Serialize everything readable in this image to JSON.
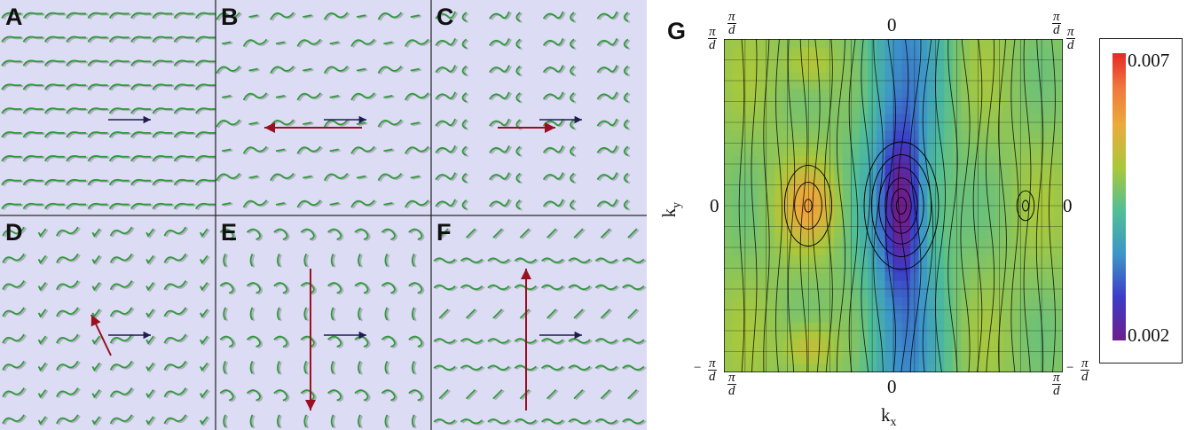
{
  "panels": [
    {
      "letter": "A"
    },
    {
      "letter": "B"
    },
    {
      "letter": "C"
    },
    {
      "letter": "D"
    },
    {
      "letter": "E"
    },
    {
      "letter": "F"
    }
  ],
  "panel_g": {
    "letter": "G",
    "xlabel": "k",
    "xlabel_sub": "x",
    "ylabel": "k",
    "ylabel_sub": "y",
    "zero": "0",
    "pi": "π",
    "d": "d",
    "minus": "−",
    "colorbar_max": "0.007",
    "colorbar_min": "0.002"
  },
  "colors": {
    "panel_bg": "#dcdcf4",
    "glyph_green": "#2f9a3a",
    "glyph_gray": "#9a9aa8",
    "arrow_navy": "#1d1d50",
    "arrow_red": "#9a1020"
  }
}
